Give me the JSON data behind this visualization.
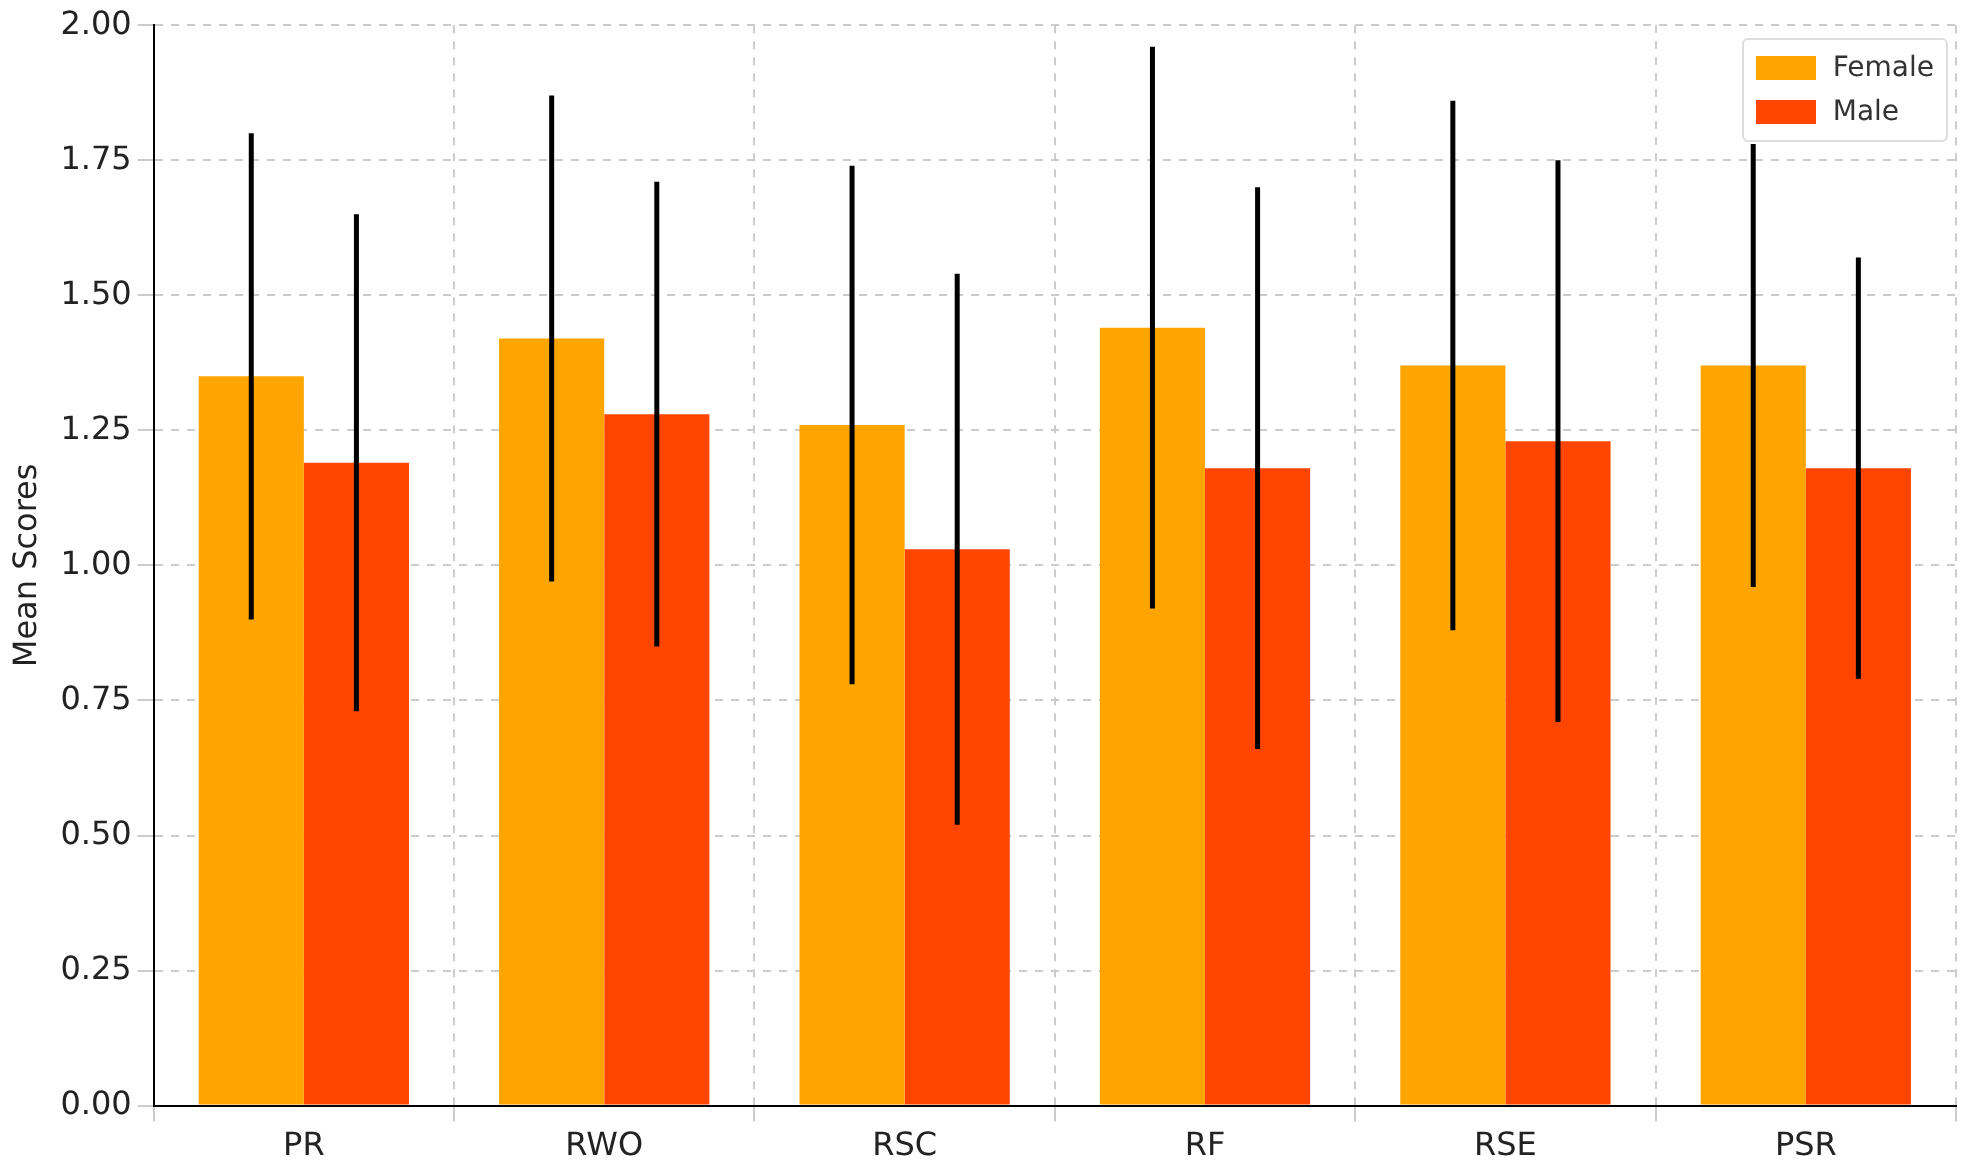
{
  "chart_data": {
    "type": "bar",
    "ylabel": "Mean Scores",
    "categories": [
      "PR",
      "RWO",
      "RSC",
      "RF",
      "RSE",
      "PSR"
    ],
    "series": [
      {
        "name": "Female",
        "color": "#ffa500",
        "values": [
          1.35,
          1.42,
          1.26,
          1.44,
          1.37,
          1.37
        ],
        "errors": [
          [
            0.9,
            1.8
          ],
          [
            0.97,
            1.87
          ],
          [
            0.78,
            1.74
          ],
          [
            0.92,
            1.96
          ],
          [
            0.88,
            1.86
          ],
          [
            0.96,
            1.78
          ]
        ]
      },
      {
        "name": "Male",
        "color": "#ff4500",
        "values": [
          1.19,
          1.28,
          1.03,
          1.18,
          1.23,
          1.18
        ],
        "errors": [
          [
            0.73,
            1.65
          ],
          [
            0.85,
            1.71
          ],
          [
            0.52,
            1.54
          ],
          [
            0.66,
            1.7
          ],
          [
            0.71,
            1.75
          ],
          [
            0.79,
            1.57
          ]
        ]
      }
    ],
    "ylim": [
      0,
      2
    ],
    "yticks": [
      {
        "value": 0,
        "label": "0.00"
      },
      {
        "value": 0.25,
        "label": "0.25"
      },
      {
        "value": 0.5,
        "label": "0.50"
      },
      {
        "value": 0.75,
        "label": "0.75"
      },
      {
        "value": 1,
        "label": "1.00"
      },
      {
        "value": 1.25,
        "label": "1.25"
      },
      {
        "value": 1.5,
        "label": "1.50"
      },
      {
        "value": 1.75,
        "label": "1.75"
      },
      {
        "value": 2,
        "label": "2.00"
      }
    ],
    "grid": true,
    "legend": "top right"
  }
}
